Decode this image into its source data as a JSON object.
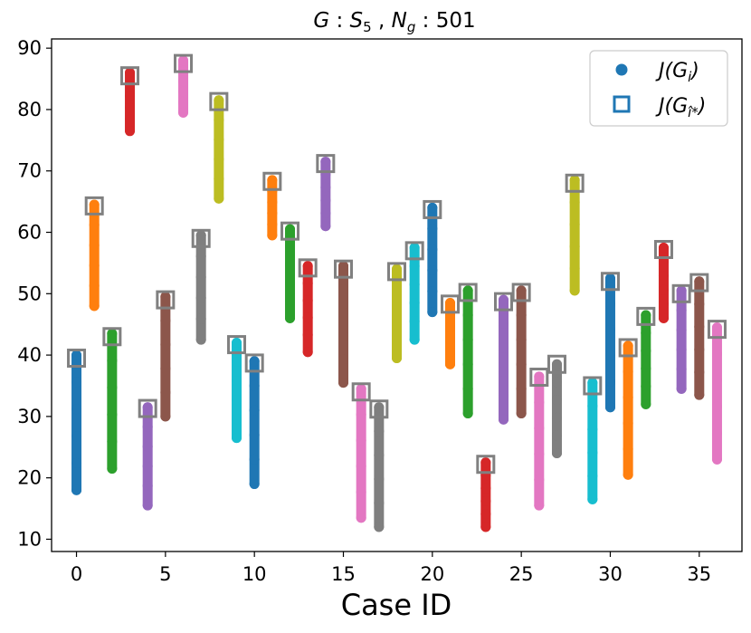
{
  "chart_data": {
    "type": "scatter",
    "title": "G : S5 , Ng : 501",
    "title_parts": {
      "g": "G",
      "s": "S",
      "s_sub": "5",
      "n": "N",
      "n_sub": "g",
      "count": "501"
    },
    "xlabel": "Case ID",
    "ylabel": "",
    "xlim": [
      -1.4,
      37.4
    ],
    "ylim": [
      8,
      91.5
    ],
    "xticks": [
      0,
      5,
      10,
      15,
      20,
      25,
      30,
      35
    ],
    "yticks": [
      10,
      20,
      30,
      40,
      50,
      60,
      70,
      80,
      90
    ],
    "grid": false,
    "legend": {
      "position": "top-right",
      "entries": [
        {
          "label": "J(G_i)",
          "text": "J(G",
          "sub": "i",
          "close": ")",
          "marker": "circle",
          "color": "#1f77b4"
        },
        {
          "label": "J(G_i*^)",
          "text": "J(G",
          "sub": "î*",
          "close": ")",
          "marker": "square",
          "color": "#1f77b4"
        }
      ]
    },
    "palette": [
      "#1f77b4",
      "#ff7f0e",
      "#2ca02c",
      "#d62728",
      "#9467bd",
      "#8c564b",
      "#e377c2",
      "#7f7f7f",
      "#bcbd22",
      "#17becf"
    ],
    "best_marker_color": "#808080",
    "series": [
      {
        "case": 0,
        "min": 18,
        "max": 40,
        "best": 39.5
      },
      {
        "case": 1,
        "min": 48,
        "max": 64.5,
        "best": 64.3
      },
      {
        "case": 2,
        "min": 21.5,
        "max": 43.5,
        "best": 43
      },
      {
        "case": 3,
        "min": 76.5,
        "max": 86,
        "best": 85.5
      },
      {
        "case": 4,
        "min": 15.5,
        "max": 31.5,
        "best": 31.3
      },
      {
        "case": 5,
        "min": 30,
        "max": 49.5,
        "best": 49
      },
      {
        "case": 6,
        "min": 79.5,
        "max": 88,
        "best": 87.5
      },
      {
        "case": 7,
        "min": 42.5,
        "max": 59.5,
        "best": 59
      },
      {
        "case": 8,
        "min": 65.5,
        "max": 81.5,
        "best": 81.3
      },
      {
        "case": 9,
        "min": 26.5,
        "max": 42,
        "best": 41.7
      },
      {
        "case": 10,
        "min": 19,
        "max": 39,
        "best": 38.7
      },
      {
        "case": 11,
        "min": 59.5,
        "max": 68.5,
        "best": 68.3
      },
      {
        "case": 12,
        "min": 46,
        "max": 60.5,
        "best": 60.2
      },
      {
        "case": 13,
        "min": 40.5,
        "max": 54.5,
        "best": 54.2
      },
      {
        "case": 14,
        "min": 61,
        "max": 71.5,
        "best": 71.2
      },
      {
        "case": 15,
        "min": 35.5,
        "max": 54.5,
        "best": 54
      },
      {
        "case": 16,
        "min": 13.5,
        "max": 34.5,
        "best": 34
      },
      {
        "case": 17,
        "min": 12,
        "max": 31.5,
        "best": 31.2
      },
      {
        "case": 18,
        "min": 39.5,
        "max": 54,
        "best": 53.6
      },
      {
        "case": 19,
        "min": 42.5,
        "max": 57.5,
        "best": 57
      },
      {
        "case": 20,
        "min": 47,
        "max": 64,
        "best": 63.7
      },
      {
        "case": 21,
        "min": 38.5,
        "max": 48.5,
        "best": 48.3
      },
      {
        "case": 22,
        "min": 30.5,
        "max": 50.5,
        "best": 50.2
      },
      {
        "case": 23,
        "min": 12,
        "max": 22.5,
        "best": 22.2
      },
      {
        "case": 24,
        "min": 29.5,
        "max": 49,
        "best": 48.7
      },
      {
        "case": 25,
        "min": 30.5,
        "max": 50.5,
        "best": 50.2
      },
      {
        "case": 26,
        "min": 15.5,
        "max": 36.5,
        "best": 36.4
      },
      {
        "case": 27,
        "min": 24,
        "max": 38.5,
        "best": 38.5
      },
      {
        "case": 28,
        "min": 50.5,
        "max": 68.5,
        "best": 68
      },
      {
        "case": 29,
        "min": 16.5,
        "max": 35.5,
        "best": 35
      },
      {
        "case": 30,
        "min": 31.5,
        "max": 52.5,
        "best": 52
      },
      {
        "case": 31,
        "min": 20.5,
        "max": 41.5,
        "best": 41.2
      },
      {
        "case": 32,
        "min": 32,
        "max": 46.5,
        "best": 46.3
      },
      {
        "case": 33,
        "min": 46,
        "max": 57.5,
        "best": 57.2
      },
      {
        "case": 34,
        "min": 34.5,
        "max": 50.5,
        "best": 50
      },
      {
        "case": 35,
        "min": 33.5,
        "max": 52,
        "best": 51.8
      },
      {
        "case": 36,
        "min": 23,
        "max": 44.5,
        "best": 44.2
      }
    ]
  }
}
